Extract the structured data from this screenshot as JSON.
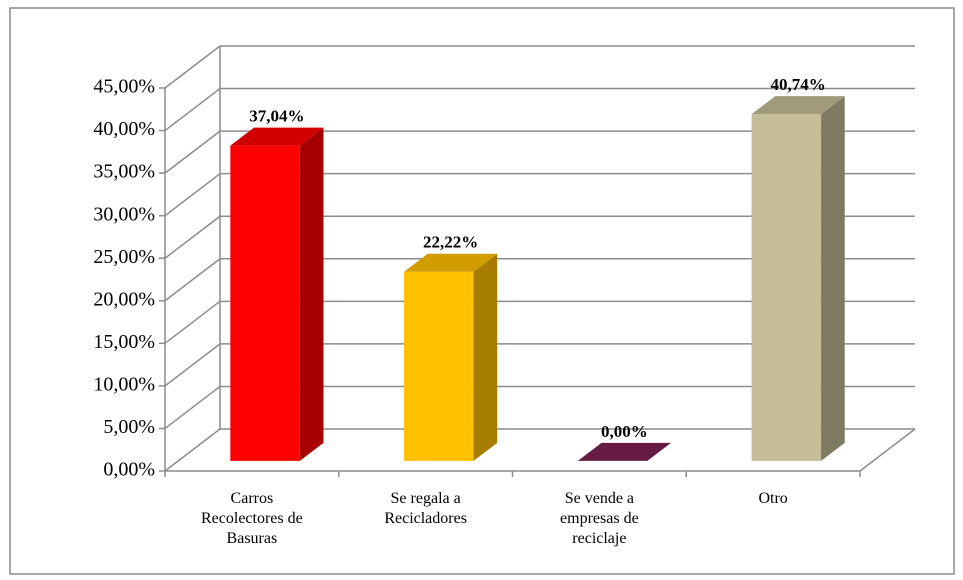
{
  "chart_data": {
    "type": "bar3d",
    "categories": [
      "Carros Recolectores de Basuras",
      "Se regala a Recicladores",
      "Se vende a empresas de reciclaje",
      "Otro"
    ],
    "values": [
      37.04,
      22.22,
      0,
      40.74
    ],
    "value_labels": [
      "37,04%",
      "22,22%",
      "0,00%",
      "40,74%"
    ],
    "colors": [
      "#ff0000",
      "#ffc000",
      "#7b2150",
      "#c4bd97"
    ],
    "ylim": [
      0,
      45
    ],
    "yticks": [
      {
        "value": 0,
        "label": "0,00%"
      },
      {
        "value": 5,
        "label": "5,00%"
      },
      {
        "value": 10,
        "label": "10,00%"
      },
      {
        "value": 15,
        "label": "15,00%"
      },
      {
        "value": 20,
        "label": "20,00%"
      },
      {
        "value": 25,
        "label": "25,00%"
      },
      {
        "value": 30,
        "label": "30,00%"
      },
      {
        "value": 35,
        "label": "35,00%"
      },
      {
        "value": 40,
        "label": "40,00%"
      },
      {
        "value": 45,
        "label": "45,00%"
      }
    ],
    "grid": true
  }
}
